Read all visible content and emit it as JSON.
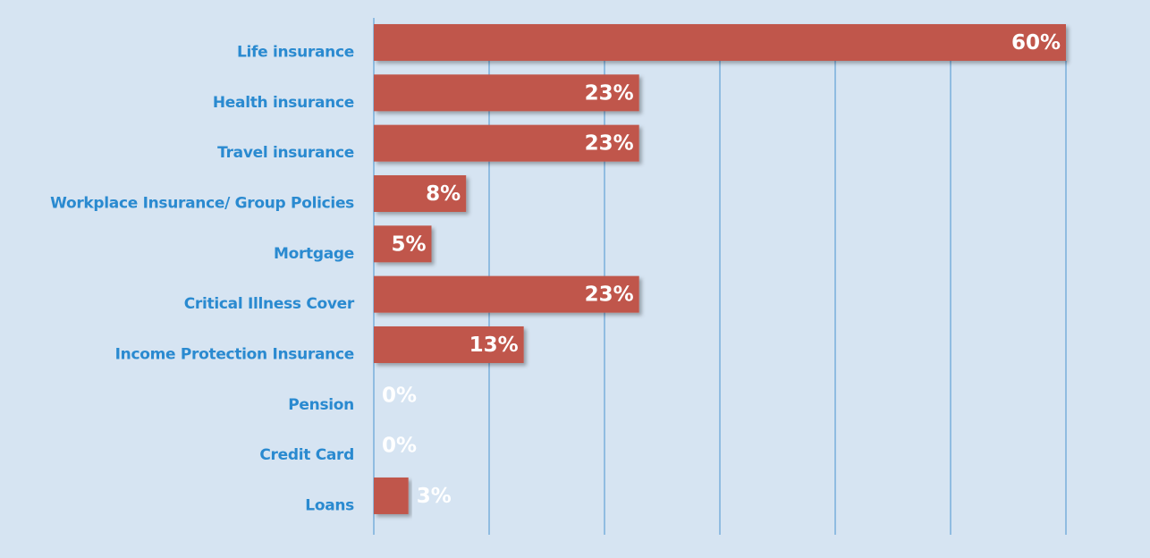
{
  "chart_data": {
    "type": "bar",
    "orientation": "horizontal",
    "categories": [
      "Life insurance",
      "Health insurance",
      "Travel insurance",
      "Workplace Insurance/ Group Policies",
      "Mortgage",
      "Critical Illness Cover",
      "Income Protection Insurance",
      "Pension",
      "Credit Card",
      "Loans"
    ],
    "values": [
      60,
      23,
      23,
      8,
      5,
      23,
      13,
      0,
      0,
      3
    ],
    "value_labels": [
      "60%",
      "23%",
      "23%",
      "8%",
      "5%",
      "23%",
      "13%",
      "0%",
      "0%",
      "3%"
    ],
    "color": "#c0574b",
    "xlim": [
      0,
      60
    ],
    "xticks": [
      0,
      10,
      20,
      30,
      40,
      50,
      60
    ],
    "grid": true
  }
}
